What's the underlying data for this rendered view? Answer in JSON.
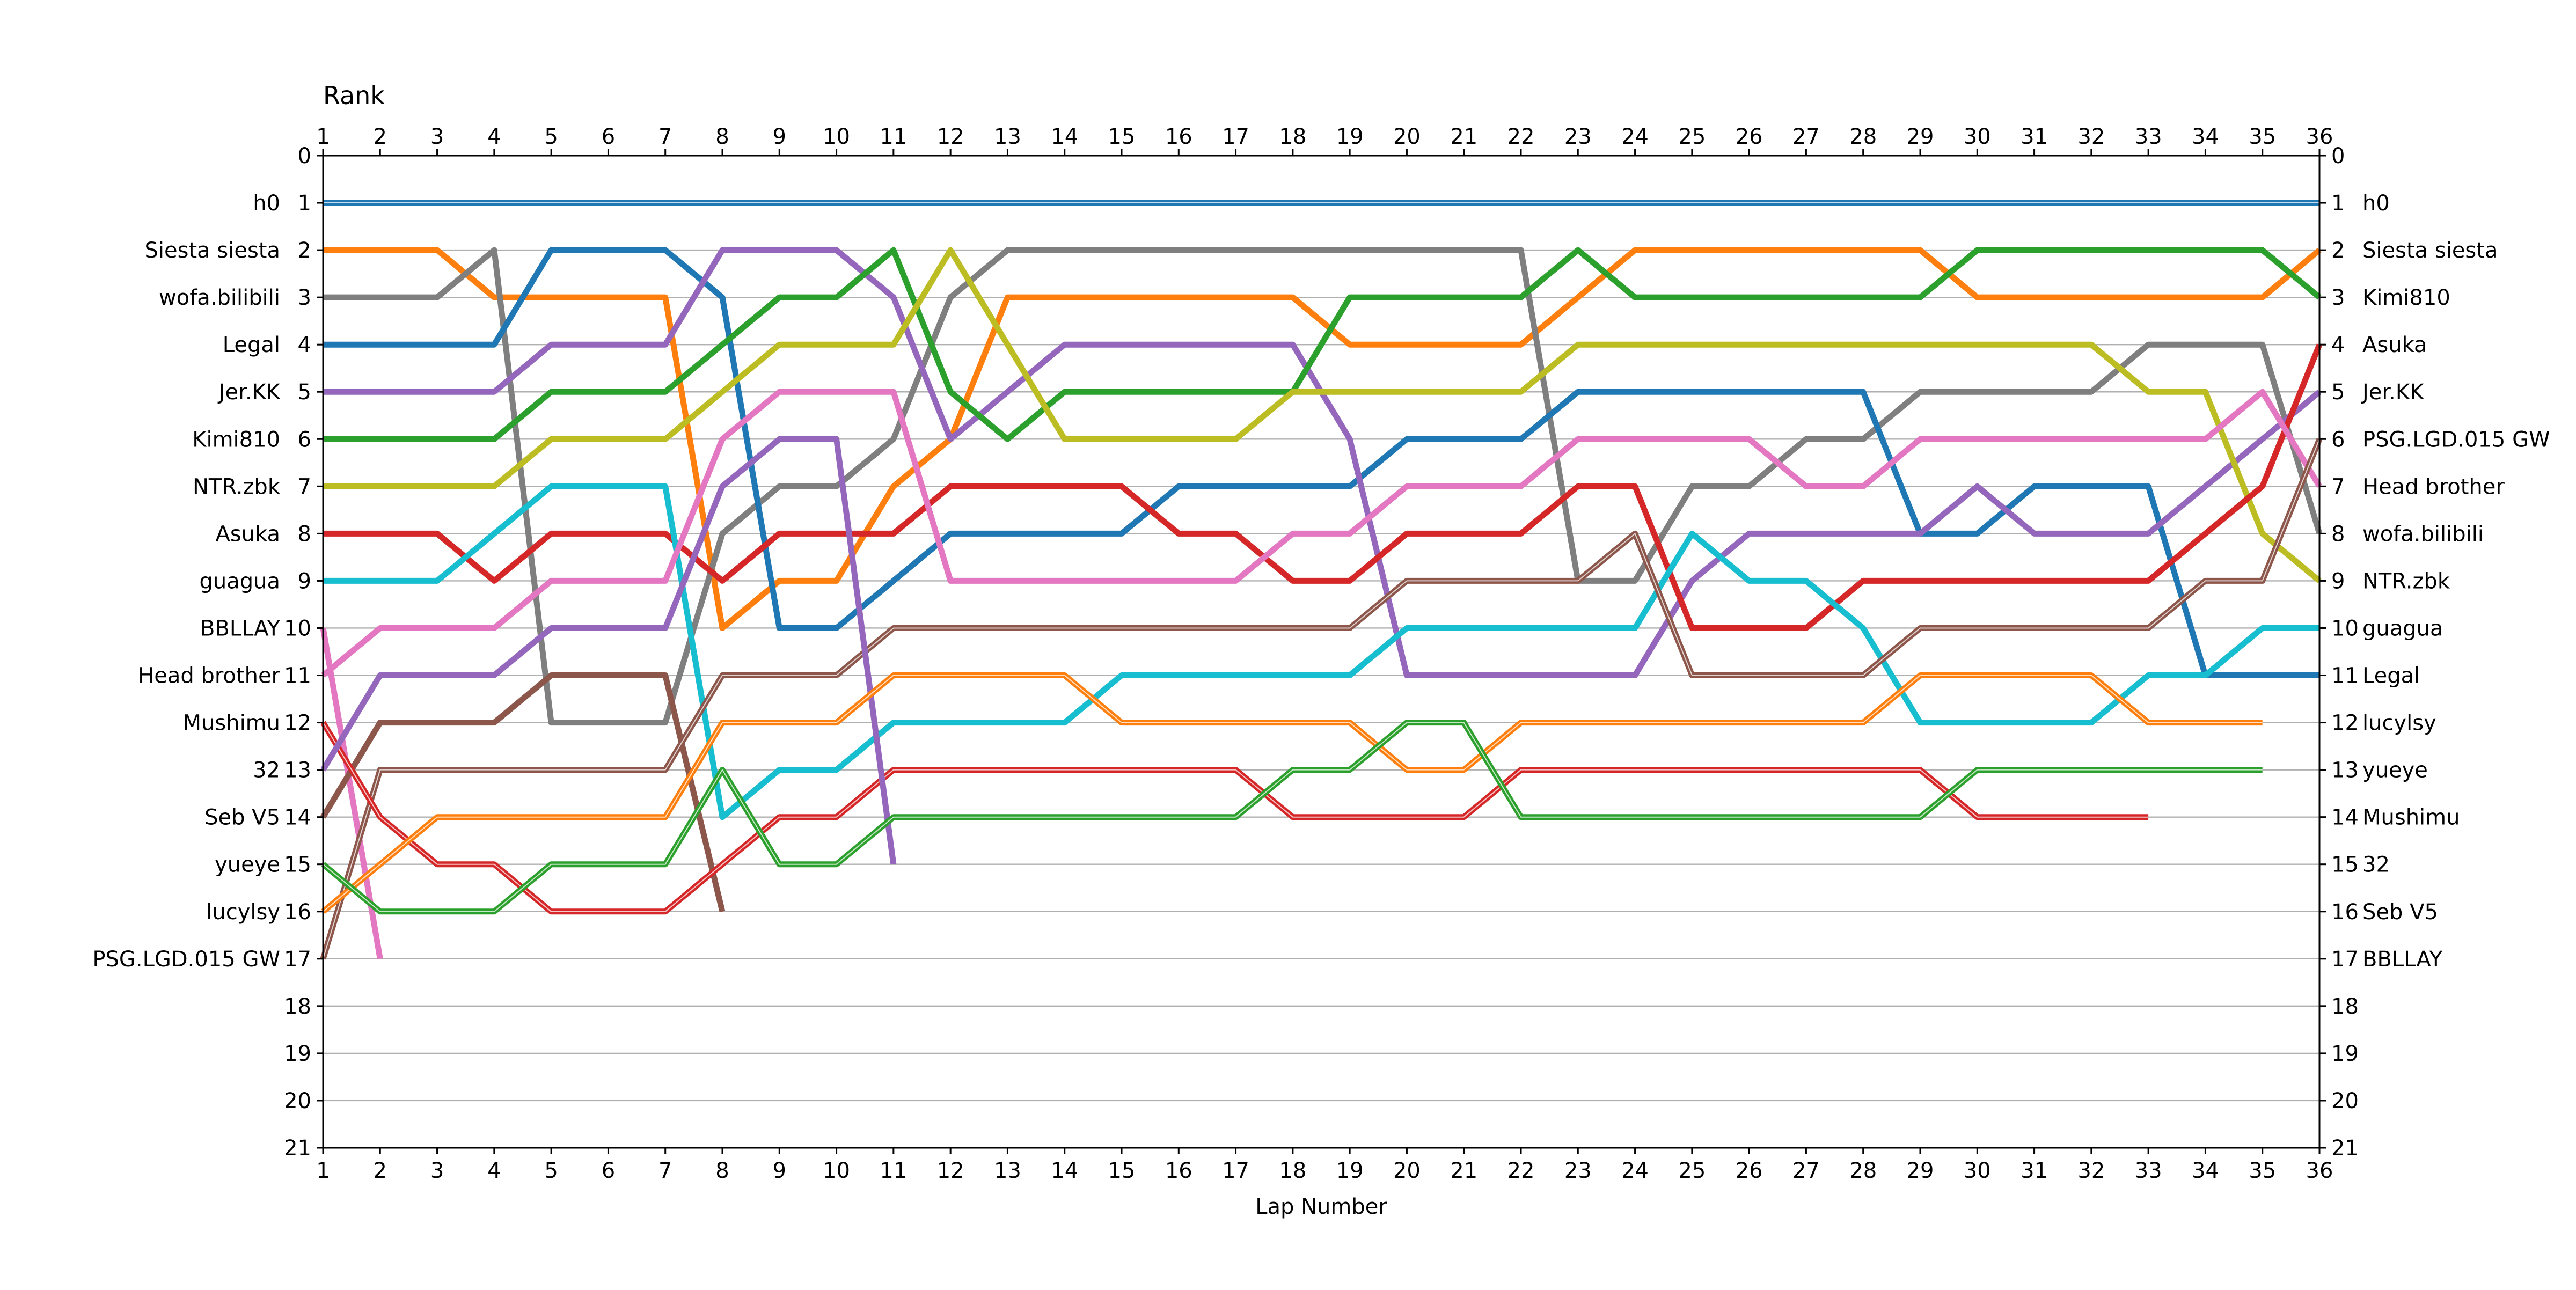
{
  "chart_data": {
    "type": "line",
    "title": "",
    "ylabel": "Rank",
    "xlabel": "Lap Number",
    "x_ticks": [
      1,
      2,
      3,
      4,
      5,
      6,
      7,
      8,
      9,
      10,
      11,
      12,
      13,
      14,
      15,
      16,
      17,
      18,
      19,
      20,
      21,
      22,
      23,
      24,
      25,
      26,
      27,
      28,
      29,
      30,
      31,
      32,
      33,
      34,
      35,
      36
    ],
    "xlim": [
      1,
      36
    ],
    "ylim": [
      21,
      0
    ],
    "y_ticks": [
      0,
      1,
      2,
      3,
      4,
      5,
      6,
      7,
      8,
      9,
      10,
      11,
      12,
      13,
      14,
      15,
      16,
      17,
      18,
      19,
      20,
      21
    ],
    "grid": "horizontal",
    "left_labels": [
      {
        "rank": 1,
        "name": "h0"
      },
      {
        "rank": 2,
        "name": "Siesta siesta"
      },
      {
        "rank": 3,
        "name": "wofa.bilibili"
      },
      {
        "rank": 4,
        "name": "Legal"
      },
      {
        "rank": 5,
        "name": "Jer.KK"
      },
      {
        "rank": 6,
        "name": "Kimi810"
      },
      {
        "rank": 7,
        "name": "NTR.zbk"
      },
      {
        "rank": 8,
        "name": "Asuka"
      },
      {
        "rank": 9,
        "name": "guagua"
      },
      {
        "rank": 10,
        "name": "BBLLAY"
      },
      {
        "rank": 11,
        "name": "Head brother"
      },
      {
        "rank": 12,
        "name": "Mushimu"
      },
      {
        "rank": 13,
        "name": "32"
      },
      {
        "rank": 14,
        "name": "Seb V5"
      },
      {
        "rank": 15,
        "name": "yueye"
      },
      {
        "rank": 16,
        "name": "lucylsy"
      },
      {
        "rank": 17,
        "name": "PSG.LGD.015 GW"
      }
    ],
    "right_labels": [
      {
        "rank": 1,
        "name": "h0"
      },
      {
        "rank": 2,
        "name": "Siesta siesta"
      },
      {
        "rank": 3,
        "name": "Kimi810"
      },
      {
        "rank": 4,
        "name": "Asuka"
      },
      {
        "rank": 5,
        "name": "Jer.KK"
      },
      {
        "rank": 6,
        "name": "PSG.LGD.015 GW"
      },
      {
        "rank": 7,
        "name": "Head brother"
      },
      {
        "rank": 8,
        "name": "wofa.bilibili"
      },
      {
        "rank": 9,
        "name": "NTR.zbk"
      },
      {
        "rank": 10,
        "name": "guagua"
      },
      {
        "rank": 11,
        "name": "Legal"
      },
      {
        "rank": 12,
        "name": "lucylsy"
      },
      {
        "rank": 13,
        "name": "yueye"
      },
      {
        "rank": 14,
        "name": "Mushimu"
      },
      {
        "rank": 15,
        "name": "32"
      },
      {
        "rank": 16,
        "name": "Seb V5"
      },
      {
        "rank": 17,
        "name": "BBLLAY"
      }
    ],
    "series": [
      {
        "id": "h0",
        "color": "#1f77b4",
        "style": "double",
        "x_start": 1,
        "values": [
          1,
          1,
          1,
          1,
          1,
          1,
          1,
          1,
          1,
          1,
          1,
          1,
          1,
          1,
          1,
          1,
          1,
          1,
          1,
          1,
          1,
          1,
          1,
          1,
          1,
          1,
          1,
          1,
          1,
          1,
          1,
          1,
          1,
          1,
          1,
          1
        ]
      },
      {
        "id": "Siesta siesta",
        "color": "#ff7f0e",
        "style": "solid",
        "x_start": 1,
        "values": [
          2,
          2,
          2,
          3,
          3,
          3,
          3,
          10,
          9,
          9,
          7,
          6,
          3,
          3,
          3,
          3,
          3,
          3,
          4,
          4,
          4,
          4,
          3,
          2,
          2,
          2,
          2,
          2,
          2,
          3,
          3,
          3,
          3,
          3,
          3,
          2
        ]
      },
      {
        "id": "wofa.bilibili",
        "color": "#7f7f7f",
        "style": "solid",
        "x_start": 1,
        "values": [
          3,
          3,
          3,
          2,
          12,
          12,
          12,
          8,
          7,
          7,
          6,
          3,
          2,
          2,
          2,
          2,
          2,
          2,
          2,
          2,
          2,
          2,
          9,
          9,
          7,
          7,
          6,
          6,
          5,
          5,
          5,
          5,
          4,
          4,
          4,
          8
        ]
      },
      {
        "id": "Legal",
        "color": "#1f77b4",
        "style": "solid",
        "x_start": 1,
        "values": [
          4,
          4,
          4,
          4,
          2,
          2,
          2,
          3,
          10,
          10,
          9,
          8,
          8,
          8,
          8,
          7,
          7,
          7,
          7,
          6,
          6,
          6,
          5,
          5,
          5,
          5,
          5,
          5,
          8,
          8,
          7,
          7,
          7,
          11,
          11,
          11
        ]
      },
      {
        "id": "Jer.KK",
        "color": "#9467bd",
        "style": "solid",
        "x_start": 1,
        "values": [
          5,
          5,
          5,
          5,
          4,
          4,
          4,
          2,
          2,
          2,
          3,
          6,
          5,
          4,
          4,
          4,
          4,
          4,
          6,
          11,
          11,
          11,
          11,
          11,
          9,
          8,
          8,
          8,
          8,
          7,
          8,
          8,
          8,
          7,
          6,
          5
        ]
      },
      {
        "id": "Kimi810",
        "color": "#2ca02c",
        "style": "solid",
        "x_start": 1,
        "values": [
          6,
          6,
          6,
          6,
          5,
          5,
          5,
          4,
          3,
          3,
          2,
          5,
          6,
          5,
          5,
          5,
          5,
          5,
          3,
          3,
          3,
          3,
          2,
          3,
          3,
          3,
          3,
          3,
          3,
          2,
          2,
          2,
          2,
          2,
          2,
          3
        ]
      },
      {
        "id": "NTR.zbk",
        "color": "#bcbd22",
        "style": "solid",
        "x_start": 1,
        "values": [
          7,
          7,
          7,
          7,
          6,
          6,
          6,
          5,
          4,
          4,
          4,
          2,
          4,
          6,
          6,
          6,
          6,
          5,
          5,
          5,
          5,
          5,
          4,
          4,
          4,
          4,
          4,
          4,
          4,
          4,
          4,
          4,
          5,
          5,
          8,
          9
        ]
      },
      {
        "id": "Asuka",
        "color": "#d62728",
        "style": "solid",
        "x_start": 1,
        "values": [
          8,
          8,
          8,
          9,
          8,
          8,
          8,
          9,
          8,
          8,
          8,
          7,
          7,
          7,
          7,
          8,
          8,
          9,
          9,
          8,
          8,
          8,
          7,
          7,
          10,
          10,
          10,
          9,
          9,
          9,
          9,
          9,
          9,
          8,
          7,
          4
        ]
      },
      {
        "id": "guagua",
        "color": "#17becf",
        "style": "solid",
        "x_start": 1,
        "values": [
          9,
          9,
          9,
          8,
          7,
          7,
          7,
          14,
          13,
          13,
          12,
          12,
          12,
          12,
          11,
          11,
          11,
          11,
          11,
          10,
          10,
          10,
          10,
          10,
          8,
          9,
          9,
          10,
          12,
          12,
          12,
          12,
          11,
          11,
          10,
          10
        ]
      },
      {
        "id": "BBLLAY",
        "color": "#e377c2",
        "style": "solid",
        "x_start": 1,
        "values": [
          10,
          17
        ]
      },
      {
        "id": "BBLLAY",
        "color": "#e377c2",
        "style": "solid",
        "x_start": 1,
        "values": [
          11,
          10,
          10,
          10,
          9,
          9,
          9,
          6,
          5,
          5,
          5,
          9,
          9,
          9,
          9,
          9,
          9,
          8,
          8,
          7,
          7,
          7,
          6,
          6,
          6,
          6,
          7,
          7,
          6,
          6,
          6,
          6,
          6,
          6,
          5,
          7
        ]
      },
      {
        "id": "Head brother",
        "color": "#8c564b",
        "style": "solid",
        "x_start": 1,
        "values": [
          14,
          12,
          12,
          12,
          11,
          11,
          11,
          16
        ]
      },
      {
        "id": "Head brother",
        "color": "#8c564b",
        "style": "double",
        "x_start": 1,
        "values": [
          17,
          13,
          13,
          13,
          13,
          13,
          13,
          11,
          11,
          11,
          10,
          10,
          10,
          10,
          10,
          10,
          10,
          10,
          10,
          9,
          9,
          9,
          9,
          8,
          11,
          11,
          11,
          11,
          10,
          10,
          10,
          10,
          10,
          9,
          9,
          6
        ]
      },
      {
        "id": "Mushimu",
        "color": "#d62728",
        "style": "double",
        "x_start": 1,
        "values": [
          12,
          14,
          15,
          15,
          16,
          16,
          16,
          15,
          14,
          14,
          13,
          13,
          13,
          13,
          13,
          13,
          13,
          14,
          14,
          14,
          14,
          13,
          13,
          13,
          13,
          13,
          13,
          13,
          13,
          14,
          14,
          14,
          14
        ]
      },
      {
        "id": "32",
        "color": "#9467bd",
        "style": "solid",
        "x_start": 1,
        "values": [
          13,
          11,
          11,
          11,
          10,
          10,
          10,
          7,
          6,
          6,
          15
        ]
      },
      {
        "id": "Seb V5",
        "color": "#ff7f0e",
        "style": "double",
        "x_start": 1,
        "values": [
          16,
          15,
          14,
          14,
          14,
          14,
          14,
          12,
          12,
          12,
          11,
          11,
          11,
          11,
          12,
          12,
          12,
          12,
          12,
          13,
          13,
          12,
          12,
          12,
          12,
          12,
          12,
          12,
          11,
          11,
          11,
          11,
          12,
          12,
          12
        ]
      },
      {
        "id": "yueye",
        "color": "#2ca02c",
        "style": "double",
        "x_start": 1,
        "values": [
          15,
          16,
          16,
          16,
          15,
          15,
          15,
          13,
          15,
          15,
          14,
          14,
          14,
          14,
          14,
          14,
          14,
          13,
          13,
          12,
          12,
          14,
          14,
          14,
          14,
          14,
          14,
          14,
          14,
          13,
          13,
          13,
          13,
          13,
          13
        ]
      }
    ]
  }
}
